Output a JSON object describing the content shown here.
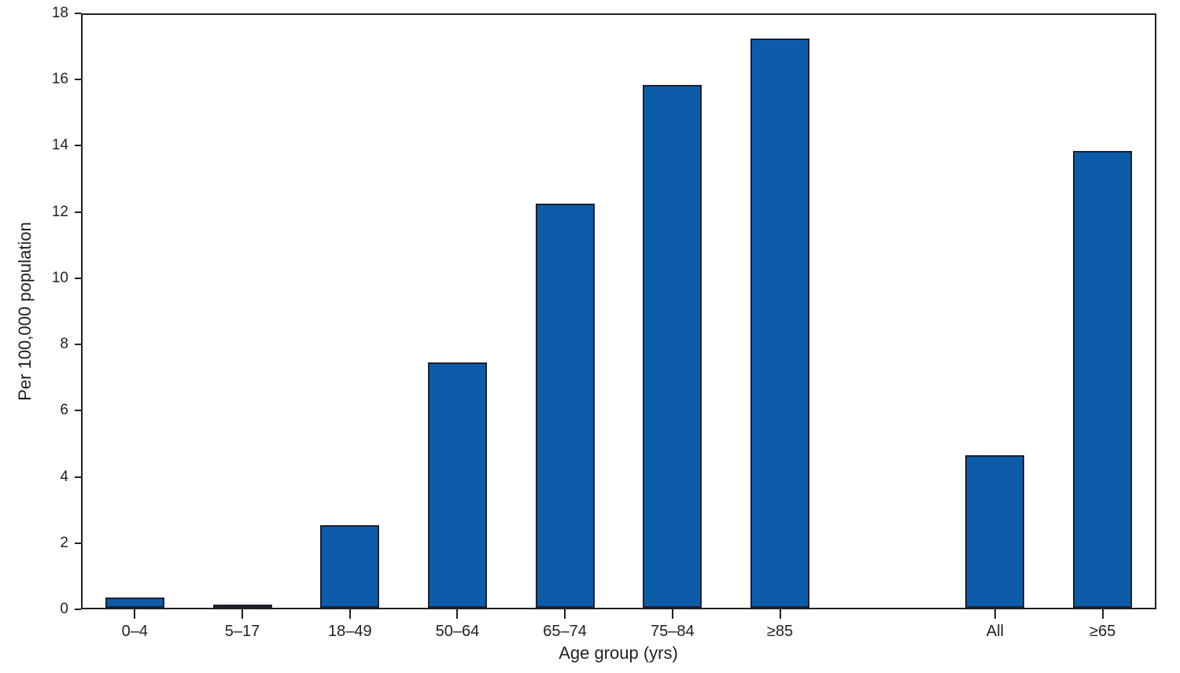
{
  "chart_data": {
    "type": "bar",
    "categories": [
      "0–4",
      "5–17",
      "18–49",
      "50–64",
      "65–74",
      "75–84",
      "≥85",
      "All",
      "≥65"
    ],
    "values": [
      0.3,
      0.1,
      2.5,
      7.4,
      12.2,
      15.8,
      17.2,
      4.6,
      13.8
    ],
    "slots": [
      0,
      1,
      2,
      3,
      4,
      5,
      6,
      8,
      9
    ],
    "slot_count": 10,
    "xlabel": "Age group (yrs)",
    "ylabel": "Per 100,000 population",
    "ylim": [
      0,
      18
    ],
    "y_ticks": [
      0,
      2,
      4,
      6,
      8,
      10,
      12,
      14,
      16,
      18
    ],
    "grid": false,
    "legend": "none",
    "bar_color": "#0d5caa",
    "bar_border_color": "#1b2130",
    "axis_color": "#231f20",
    "background_color": "#ffffff"
  }
}
